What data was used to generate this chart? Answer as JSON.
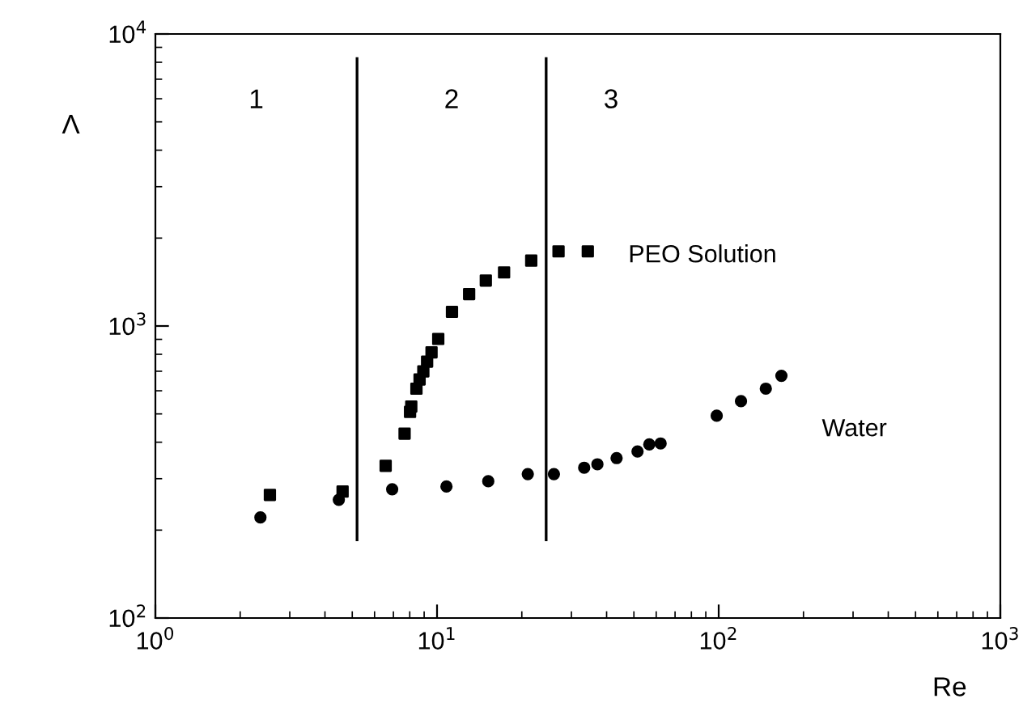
{
  "chart_data": {
    "type": "scatter",
    "xlabel": "Re",
    "ylabel": "Λ",
    "log": "xy",
    "grid": false,
    "legend": false,
    "xlim": [
      1,
      1000
    ],
    "ylim": [
      100,
      10000
    ],
    "xticks": [
      {
        "value": 1,
        "label": "10$^{0}$"
      },
      {
        "value": 10,
        "label": "10$^{1}$"
      },
      {
        "value": 100,
        "label": "10$^{2}$"
      },
      {
        "value": 1000,
        "label": "10$^{3}$"
      }
    ],
    "yticks": [
      {
        "value": 100,
        "label": "10$^{2}$"
      },
      {
        "value": 1000,
        "label": "10$^{3}$"
      },
      {
        "value": 10000,
        "label": "10$^{4}$"
      }
    ],
    "series": [
      {
        "name": "PEO Solution",
        "color": "#000000",
        "marker": "square",
        "x": [
          2.55,
          4.62,
          6.57,
          7.67,
          8.02,
          8.1,
          8.45,
          8.67,
          8.94,
          9.22,
          9.56,
          10.1,
          11.3,
          13.0,
          14.9,
          17.3,
          21.6,
          27.0,
          34.3
        ],
        "values": [
          264,
          271,
          332,
          428,
          508,
          530,
          610,
          656,
          699,
          755,
          812,
          903,
          1118,
          1286,
          1431,
          1526,
          1674,
          1801,
          1801
        ]
      },
      {
        "name": "Water",
        "color": "#000000",
        "marker": "circle",
        "x": [
          2.36,
          4.48,
          6.93,
          10.8,
          15.2,
          21.0,
          26.0,
          33.3,
          37.1,
          43.4,
          51.5,
          56.7,
          62.2,
          98.4,
          120,
          147,
          167
        ],
        "values": [
          221,
          254,
          276,
          282,
          294,
          311,
          311,
          327,
          336,
          353,
          372,
          393,
          396,
          493,
          553,
          610,
          675
        ]
      }
    ],
    "ref_lines": [
      {
        "axis": "x",
        "value": 5.2,
        "color": "#000000",
        "line_style": "solid"
      },
      {
        "axis": "x",
        "value": 24.4,
        "color": "#000000",
        "line_style": "solid"
      }
    ],
    "annotations": [
      "1",
      "2",
      "3"
    ]
  }
}
